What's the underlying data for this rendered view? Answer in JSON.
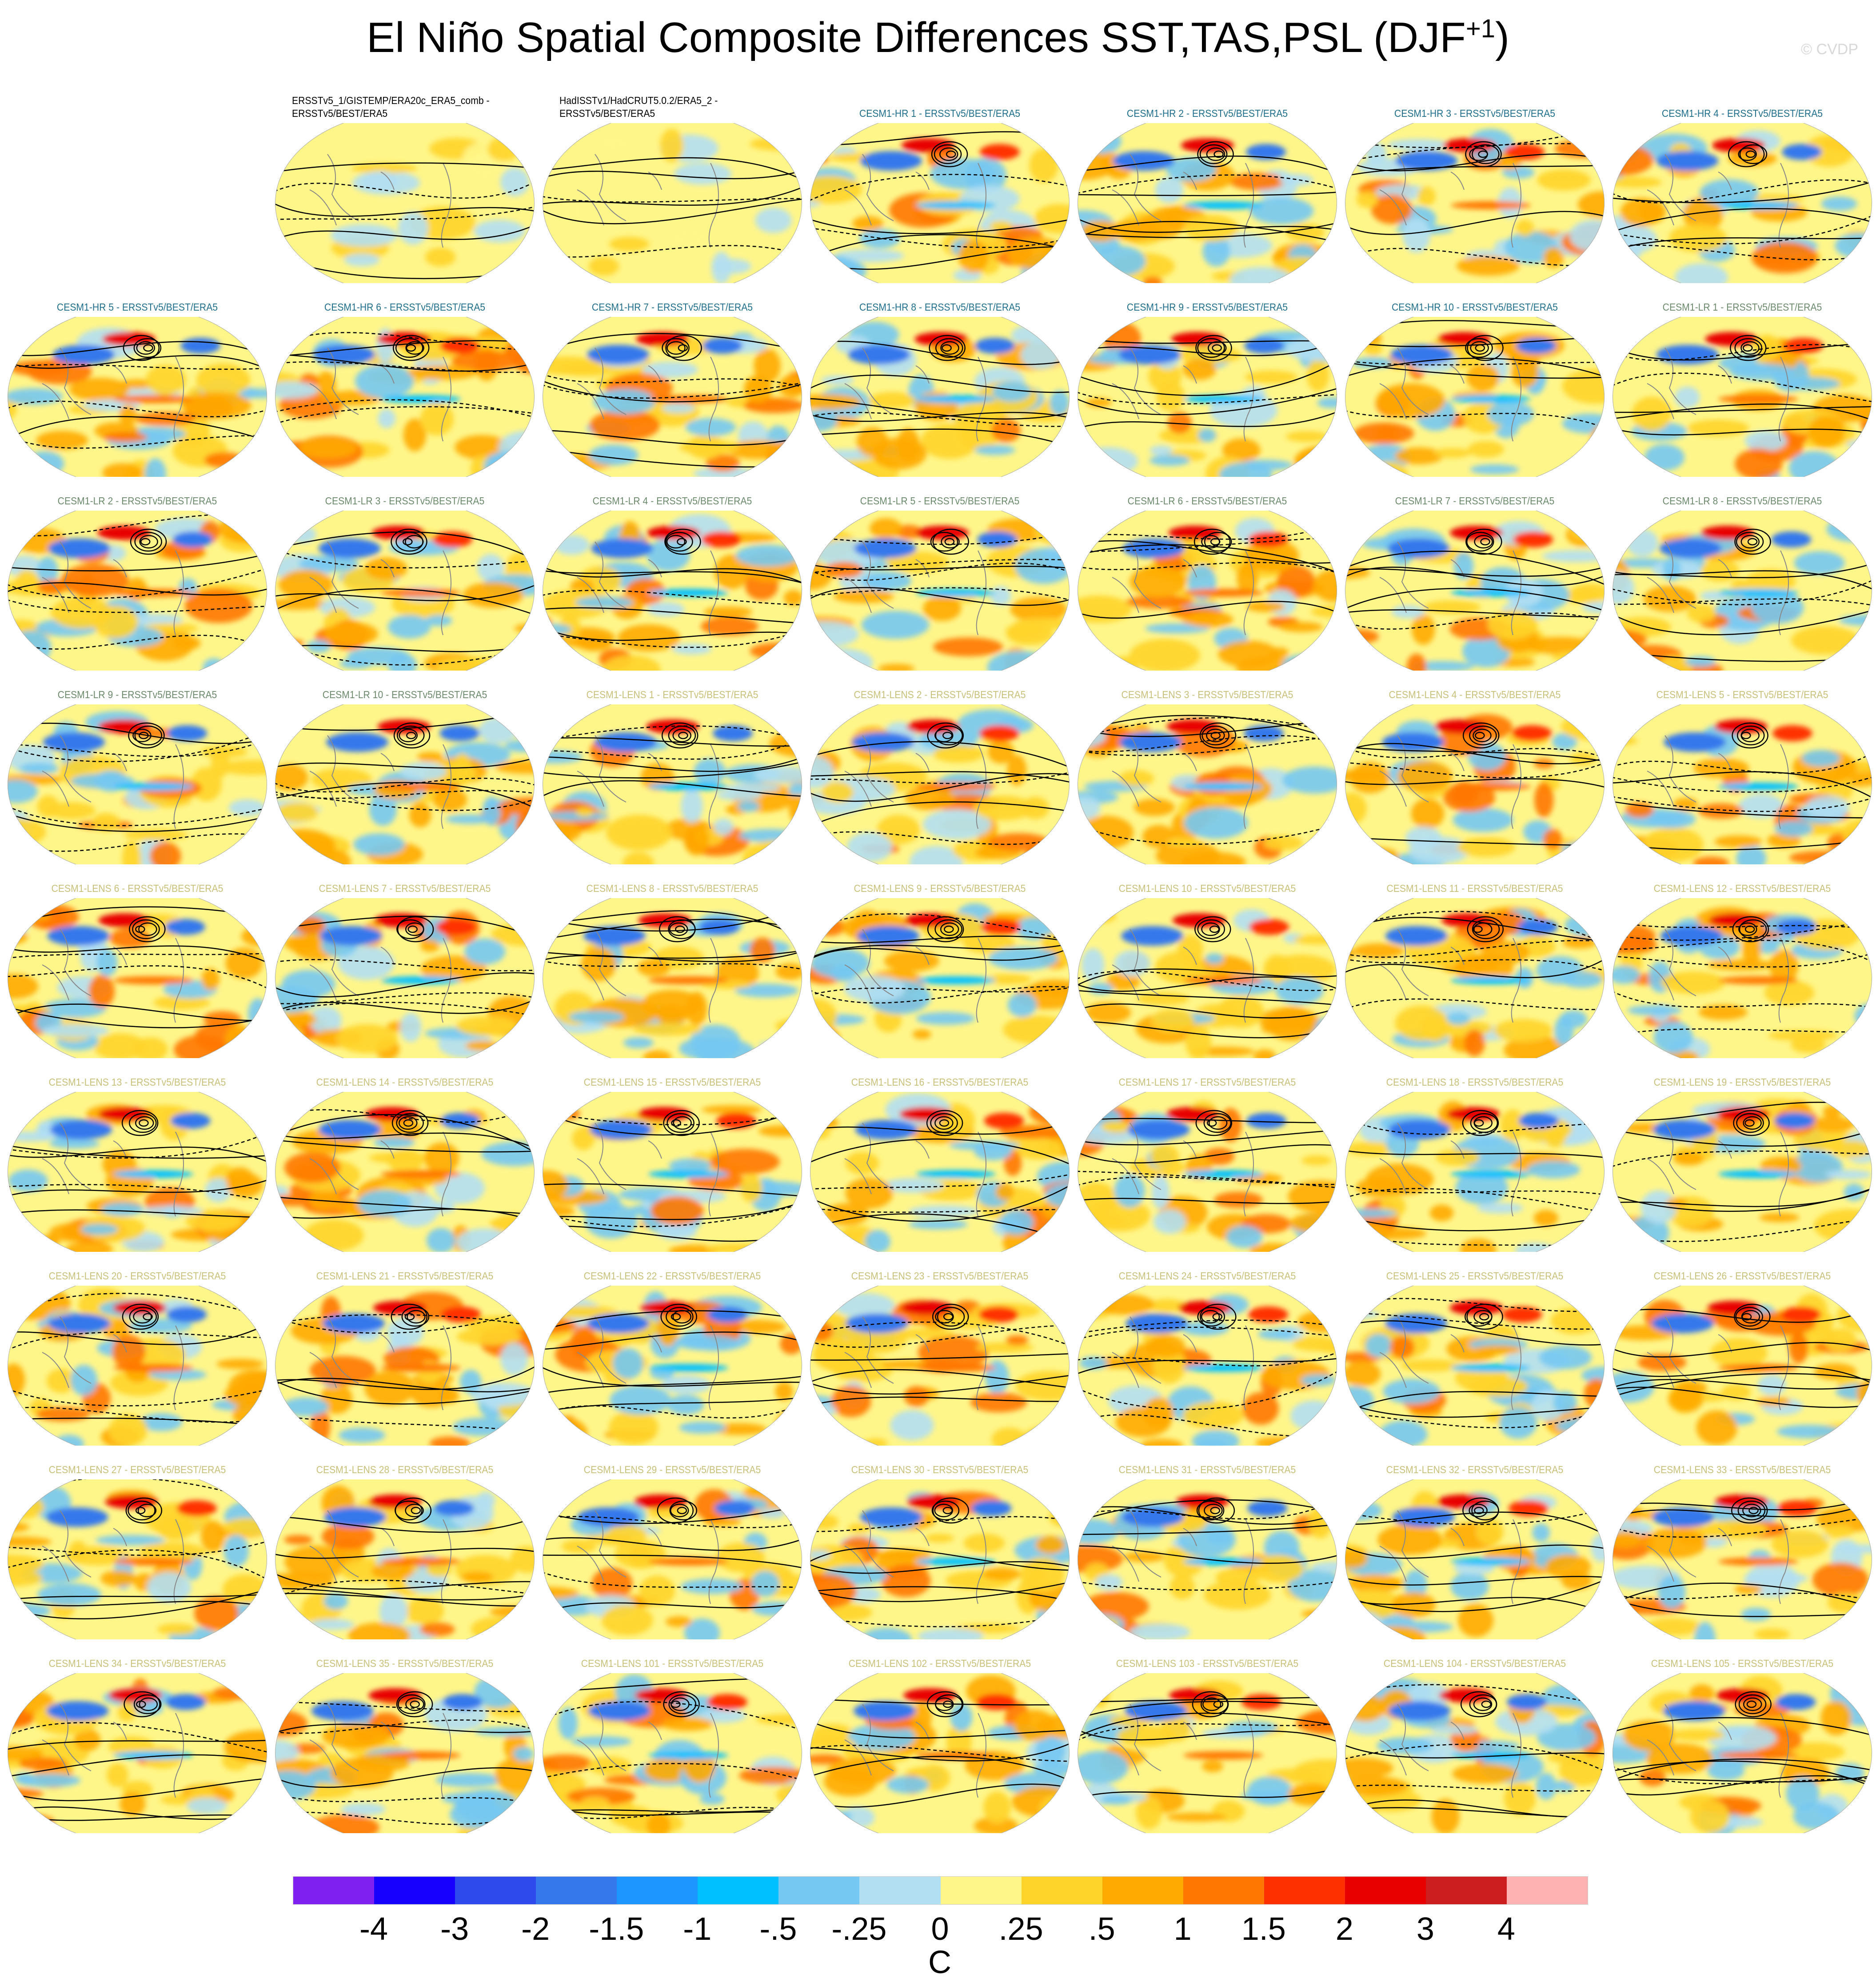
{
  "title": "El Niño Spatial Composite Differences SST,TAS,PSL (DJF",
  "title_superscript": "+1",
  "title_close": ")",
  "watermark": "© CVDP",
  "group_colors": {
    "obs": "#000000",
    "hr": "#1f6e8c",
    "lr": "#6b8a6b",
    "lens": "#c9c07a"
  },
  "panels": [
    {
      "label": "ERSSTv5_1/GISTEMP/ERA20c_ERA5_comb -\nERSSTv5/BEST/ERA5",
      "group": "obs"
    },
    {
      "label": "HadISSTv1/HadCRUT5.0.2/ERA5_2 -\nERSSTv5/BEST/ERA5",
      "group": "obs"
    },
    {
      "label": "CESM1-HR 1 - ERSSTv5/BEST/ERA5",
      "group": "hr"
    },
    {
      "label": "CESM1-HR 2 - ERSSTv5/BEST/ERA5",
      "group": "hr"
    },
    {
      "label": "CESM1-HR 3 - ERSSTv5/BEST/ERA5",
      "group": "hr"
    },
    {
      "label": "CESM1-HR 4 - ERSSTv5/BEST/ERA5",
      "group": "hr"
    },
    {
      "label": "CESM1-HR 5 - ERSSTv5/BEST/ERA5",
      "group": "hr"
    },
    {
      "label": "CESM1-HR 6 - ERSSTv5/BEST/ERA5",
      "group": "hr"
    },
    {
      "label": "CESM1-HR 7 - ERSSTv5/BEST/ERA5",
      "group": "hr"
    },
    {
      "label": "CESM1-HR 8 - ERSSTv5/BEST/ERA5",
      "group": "hr"
    },
    {
      "label": "CESM1-HR 9 - ERSSTv5/BEST/ERA5",
      "group": "hr"
    },
    {
      "label": "CESM1-HR 10 - ERSSTv5/BEST/ERA5",
      "group": "hr"
    },
    {
      "label": "CESM1-LR 1 - ERSSTv5/BEST/ERA5",
      "group": "lr"
    },
    {
      "label": "CESM1-LR 2 - ERSSTv5/BEST/ERA5",
      "group": "lr"
    },
    {
      "label": "CESM1-LR 3 - ERSSTv5/BEST/ERA5",
      "group": "lr"
    },
    {
      "label": "CESM1-LR 4 - ERSSTv5/BEST/ERA5",
      "group": "lr"
    },
    {
      "label": "CESM1-LR 5 - ERSSTv5/BEST/ERA5",
      "group": "lr"
    },
    {
      "label": "CESM1-LR 6 - ERSSTv5/BEST/ERA5",
      "group": "lr"
    },
    {
      "label": "CESM1-LR 7 - ERSSTv5/BEST/ERA5",
      "group": "lr"
    },
    {
      "label": "CESM1-LR 8 - ERSSTv5/BEST/ERA5",
      "group": "lr"
    },
    {
      "label": "CESM1-LR 9 - ERSSTv5/BEST/ERA5",
      "group": "lr"
    },
    {
      "label": "CESM1-LR 10 - ERSSTv5/BEST/ERA5",
      "group": "lr"
    },
    {
      "label": "CESM1-LENS 1 - ERSSTv5/BEST/ERA5",
      "group": "lens"
    },
    {
      "label": "CESM1-LENS 2 - ERSSTv5/BEST/ERA5",
      "group": "lens"
    },
    {
      "label": "CESM1-LENS 3 - ERSSTv5/BEST/ERA5",
      "group": "lens"
    },
    {
      "label": "CESM1-LENS 4 - ERSSTv5/BEST/ERA5",
      "group": "lens"
    },
    {
      "label": "CESM1-LENS 5 - ERSSTv5/BEST/ERA5",
      "group": "lens"
    },
    {
      "label": "CESM1-LENS 6 - ERSSTv5/BEST/ERA5",
      "group": "lens"
    },
    {
      "label": "CESM1-LENS 7 - ERSSTv5/BEST/ERA5",
      "group": "lens"
    },
    {
      "label": "CESM1-LENS 8 - ERSSTv5/BEST/ERA5",
      "group": "lens"
    },
    {
      "label": "CESM1-LENS 9 - ERSSTv5/BEST/ERA5",
      "group": "lens"
    },
    {
      "label": "CESM1-LENS 10 - ERSSTv5/BEST/ERA5",
      "group": "lens"
    },
    {
      "label": "CESM1-LENS 11 - ERSSTv5/BEST/ERA5",
      "group": "lens"
    },
    {
      "label": "CESM1-LENS 12 - ERSSTv5/BEST/ERA5",
      "group": "lens"
    },
    {
      "label": "CESM1-LENS 13 - ERSSTv5/BEST/ERA5",
      "group": "lens"
    },
    {
      "label": "CESM1-LENS 14 - ERSSTv5/BEST/ERA5",
      "group": "lens"
    },
    {
      "label": "CESM1-LENS 15 - ERSSTv5/BEST/ERA5",
      "group": "lens"
    },
    {
      "label": "CESM1-LENS 16 - ERSSTv5/BEST/ERA5",
      "group": "lens"
    },
    {
      "label": "CESM1-LENS 17 - ERSSTv5/BEST/ERA5",
      "group": "lens"
    },
    {
      "label": "CESM1-LENS 18 - ERSSTv5/BEST/ERA5",
      "group": "lens"
    },
    {
      "label": "CESM1-LENS 19 - ERSSTv5/BEST/ERA5",
      "group": "lens"
    },
    {
      "label": "CESM1-LENS 20 - ERSSTv5/BEST/ERA5",
      "group": "lens"
    },
    {
      "label": "CESM1-LENS 21 - ERSSTv5/BEST/ERA5",
      "group": "lens"
    },
    {
      "label": "CESM1-LENS 22 - ERSSTv5/BEST/ERA5",
      "group": "lens"
    },
    {
      "label": "CESM1-LENS 23 - ERSSTv5/BEST/ERA5",
      "group": "lens"
    },
    {
      "label": "CESM1-LENS 24 - ERSSTv5/BEST/ERA5",
      "group": "lens"
    },
    {
      "label": "CESM1-LENS 25 - ERSSTv5/BEST/ERA5",
      "group": "lens"
    },
    {
      "label": "CESM1-LENS 26 - ERSSTv5/BEST/ERA5",
      "group": "lens"
    },
    {
      "label": "CESM1-LENS 27 - ERSSTv5/BEST/ERA5",
      "group": "lens"
    },
    {
      "label": "CESM1-LENS 28 - ERSSTv5/BEST/ERA5",
      "group": "lens"
    },
    {
      "label": "CESM1-LENS 29 - ERSSTv5/BEST/ERA5",
      "group": "lens"
    },
    {
      "label": "CESM1-LENS 30 - ERSSTv5/BEST/ERA5",
      "group": "lens"
    },
    {
      "label": "CESM1-LENS 31 - ERSSTv5/BEST/ERA5",
      "group": "lens"
    },
    {
      "label": "CESM1-LENS 32 - ERSSTv5/BEST/ERA5",
      "group": "lens"
    },
    {
      "label": "CESM1-LENS 33 - ERSSTv5/BEST/ERA5",
      "group": "lens"
    },
    {
      "label": "CESM1-LENS 34 - ERSSTv5/BEST/ERA5",
      "group": "lens"
    },
    {
      "label": "CESM1-LENS 35 - ERSSTv5/BEST/ERA5",
      "group": "lens"
    },
    {
      "label": "CESM1-LENS 101 - ERSSTv5/BEST/ERA5",
      "group": "lens"
    },
    {
      "label": "CESM1-LENS 102 - ERSSTv5/BEST/ERA5",
      "group": "lens"
    },
    {
      "label": "CESM1-LENS 103 - ERSSTv5/BEST/ERA5",
      "group": "lens"
    },
    {
      "label": "CESM1-LENS 104 - ERSSTv5/BEST/ERA5",
      "group": "lens"
    },
    {
      "label": "CESM1-LENS 105 - ERSSTv5/BEST/ERA5",
      "group": "lens"
    }
  ],
  "chart_data": {
    "type": "heatmap",
    "title": "El Niño Spatial Composite Differences SST,TAS,PSL (DJF+1)",
    "colorbar": {
      "levels": [
        "-4",
        "-3",
        "-2",
        "-1.5",
        "-1",
        "-.5",
        "-.25",
        "0",
        ".25",
        ".5",
        "1",
        "1.5",
        "2",
        "3",
        "4"
      ],
      "colors": [
        "#8020f0",
        "#1800ff",
        "#2f4aec",
        "#3478ec",
        "#1e96ff",
        "#00c0ff",
        "#75c8f2",
        "#b3dff2",
        "#fff68a",
        "#ffd42a",
        "#ffaa00",
        "#ff7700",
        "#ff3000",
        "#e80000",
        "#cc1e1e",
        "#ffb2b2"
      ],
      "unit": "C"
    }
  }
}
